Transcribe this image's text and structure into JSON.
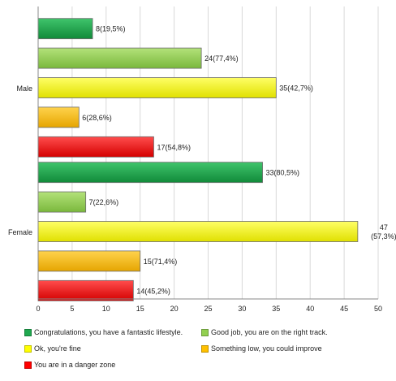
{
  "chart_data": {
    "type": "bar",
    "orientation": "horizontal",
    "categories": [
      "Male",
      "Female"
    ],
    "series": [
      {
        "name": "Congratulations, you have a fantastic lifestyle.",
        "color": "#1fa84f",
        "values": [
          8,
          33
        ],
        "labels": [
          "8(19,5%)",
          "33(80,5%)"
        ]
      },
      {
        "name": "Good job, you are on the right track.",
        "color": "#92d050",
        "values": [
          24,
          7
        ],
        "labels": [
          "24(77,4%)",
          "7(22,6%)"
        ]
      },
      {
        "name": "Ok, you're fine",
        "color": "#ffff00",
        "values": [
          35,
          47
        ],
        "labels": [
          "35(42,7%)",
          "47\n(57,3%)"
        ]
      },
      {
        "name": "Something low, you could improve",
        "color": "#ffc000",
        "values": [
          6,
          15
        ],
        "labels": [
          "6(28,6%)",
          "15(71,4%)"
        ]
      },
      {
        "name": "You are in a danger zone",
        "color": "#ff0000",
        "values": [
          17,
          14
        ],
        "labels": [
          "17(54,8%)",
          "14(45,2%)"
        ]
      }
    ],
    "xlim": [
      0,
      50
    ],
    "xticks": [
      "0",
      "5",
      "10",
      "15",
      "20",
      "25",
      "30",
      "35",
      "40",
      "45",
      "50"
    ],
    "grid": true,
    "legend_position": "bottom"
  }
}
